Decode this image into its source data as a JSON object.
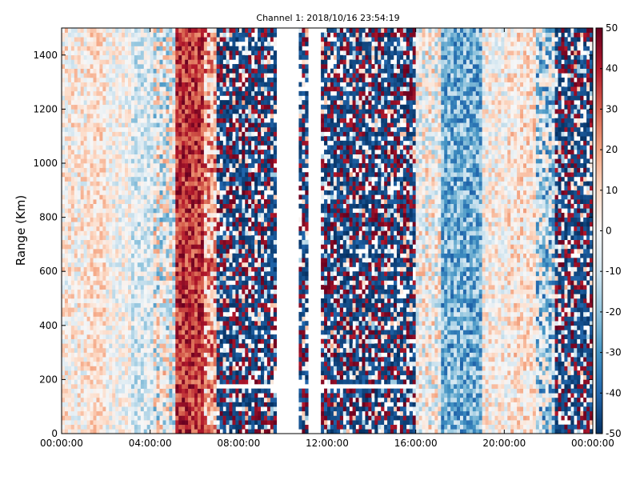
{
  "chart_data": {
    "type": "heatmap",
    "title": "Channel 1: 2018/10/16 23:54:19",
    "xlabel": "",
    "ylabel": "Range (Km)",
    "x_ticks": [
      "00:00:00",
      "04:00:00",
      "08:00:00",
      "12:00:00",
      "16:00:00",
      "20:00:00",
      "00:00:00"
    ],
    "xlim_hours": [
      0,
      24
    ],
    "y_ticks": [
      0,
      200,
      400,
      600,
      800,
      1000,
      1200,
      1400
    ],
    "ylim": [
      0,
      1500
    ],
    "colorbar": {
      "ticks": [
        50,
        40,
        30,
        20,
        10,
        0,
        -10,
        -20,
        -30,
        -40,
        -50
      ],
      "range": [
        -50,
        50
      ],
      "colormap": "RdBu_r",
      "colors": [
        "#053061",
        "#2166ac",
        "#4393c3",
        "#92c5de",
        "#d1e5f0",
        "#f7f7f7",
        "#fddbc7",
        "#f4a582",
        "#d6604d",
        "#b2182b",
        "#67001f"
      ]
    },
    "gaps_hours": [
      [
        9.7,
        10.7
      ],
      [
        11.2,
        11.7
      ]
    ],
    "horizontal_gap_km": 180,
    "bands": [
      {
        "from_hours": 0.0,
        "to_hours": 1.1,
        "mean": 3,
        "noise": 9
      },
      {
        "from_hours": 1.1,
        "to_hours": 2.0,
        "mean": 8,
        "noise": 7
      },
      {
        "from_hours": 2.0,
        "to_hours": 3.2,
        "mean": 0,
        "noise": 8
      },
      {
        "from_hours": 3.2,
        "to_hours": 4.2,
        "mean": -8,
        "noise": 8
      },
      {
        "from_hours": 4.2,
        "to_hours": 5.1,
        "mean": -3,
        "noise": 15
      },
      {
        "from_hours": 5.1,
        "to_hours": 6.4,
        "mean": 36,
        "noise": 8
      },
      {
        "from_hours": 6.4,
        "to_hours": 7.0,
        "mean": 18,
        "noise": 14
      },
      {
        "from_hours": 7.0,
        "to_hours": 9.7,
        "mean": -22,
        "noise": 40
      },
      {
        "from_hours": 10.7,
        "to_hours": 11.2,
        "mean": -30,
        "noise": 35
      },
      {
        "from_hours": 11.7,
        "to_hours": 16.0,
        "mean": -12,
        "noise": 42
      },
      {
        "from_hours": 16.0,
        "to_hours": 17.2,
        "mean": 0,
        "noise": 12
      },
      {
        "from_hours": 17.2,
        "to_hours": 19.0,
        "mean": -24,
        "noise": 10
      },
      {
        "from_hours": 19.0,
        "to_hours": 20.2,
        "mean": 2,
        "noise": 9
      },
      {
        "from_hours": 20.2,
        "to_hours": 21.5,
        "mean": 6,
        "noise": 9
      },
      {
        "from_hours": 21.5,
        "to_hours": 22.3,
        "mean": -14,
        "noise": 16
      },
      {
        "from_hours": 22.3,
        "to_hours": 24.0,
        "mean": -20,
        "noise": 30
      }
    ]
  }
}
